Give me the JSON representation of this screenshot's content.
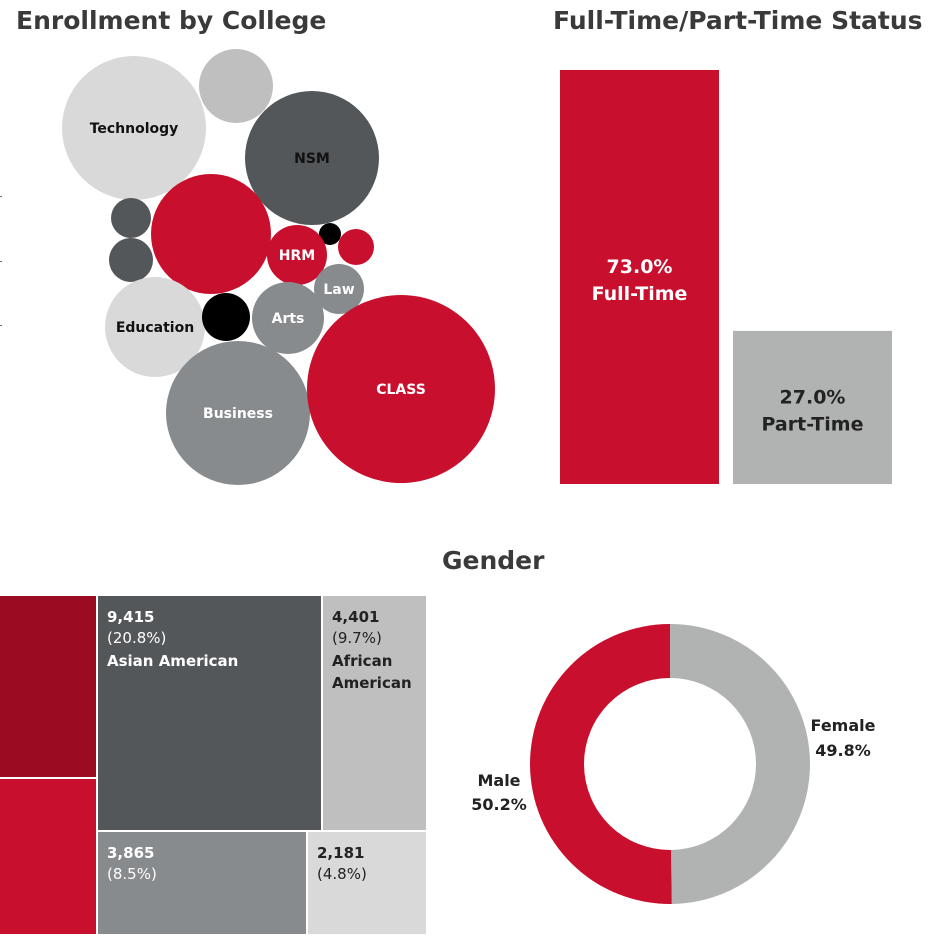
{
  "titles": {
    "enrollment": "Enrollment by College",
    "status": "Full-Time/Part-Time Status",
    "gender": "Gender"
  },
  "colors": {
    "red": "#c8102e",
    "dark_red": "#9b0c22",
    "charcoal": "#54575a",
    "mid_gray": "#888b8d",
    "light_gray": "#b1b3b3",
    "pale_gray": "#d9d9d9",
    "silver": "#bfbfbf",
    "black": "#000000"
  },
  "chart_data": [
    {
      "type": "bubble",
      "title": "Enrollment by College",
      "bubbles": [
        {
          "label": "Technology",
          "color": "pale_gray",
          "text_color": "#111111"
        },
        {
          "label": "",
          "color": "silver"
        },
        {
          "label": "NSM",
          "color": "charcoal",
          "text_color": "#111111"
        },
        {
          "label": "",
          "color": "charcoal"
        },
        {
          "label": "",
          "color": "red"
        },
        {
          "label": "",
          "color": "black"
        },
        {
          "label": "HRM",
          "color": "red",
          "text_color": "#ffffff"
        },
        {
          "label": "",
          "color": "red"
        },
        {
          "label": "",
          "color": "charcoal"
        },
        {
          "label": "Law",
          "color": "mid_gray",
          "text_color": "#ffffff"
        },
        {
          "label": "Education",
          "color": "pale_gray",
          "text_color": "#111111"
        },
        {
          "label": "",
          "color": "black"
        },
        {
          "label": "Arts",
          "color": "mid_gray",
          "text_color": "#ffffff"
        },
        {
          "label": "Business",
          "color": "mid_gray",
          "text_color": "#ffffff"
        },
        {
          "label": "CLASS",
          "color": "red",
          "text_color": "#ffffff"
        }
      ]
    },
    {
      "type": "bar",
      "title": "Full-Time/Part-Time Status",
      "categories": [
        "Full-Time",
        "Part-Time"
      ],
      "values": [
        73.0,
        27.0
      ],
      "value_labels": [
        "73.0%",
        "27.0%"
      ],
      "colors": [
        "red",
        "light_gray"
      ],
      "text_colors": [
        "#ffffff",
        "#222222"
      ],
      "ylim": [
        0,
        73.0
      ]
    },
    {
      "type": "treemap",
      "tiles": [
        {
          "value": "",
          "pct": "",
          "label": "",
          "color": "dark_red"
        },
        {
          "value": "",
          "pct": "",
          "label": "",
          "color": "red"
        },
        {
          "value": "9,415",
          "pct": "(20.8%)",
          "label": "Asian American",
          "color": "charcoal",
          "text_color": "#ffffff"
        },
        {
          "value": "4,401",
          "pct": "(9.7%)",
          "label": "African\nAmerican",
          "color": "silver",
          "text_color": "#222222"
        },
        {
          "value": "3,865",
          "pct": "(8.5%)",
          "label": "",
          "color": "mid_gray",
          "text_color": "#ffffff"
        },
        {
          "value": "2,181",
          "pct": "(4.8%)",
          "label": "",
          "color": "pale_gray",
          "text_color": "#222222"
        }
      ]
    },
    {
      "type": "pie",
      "title": "Gender",
      "donut": true,
      "slices": [
        {
          "name": "Female",
          "value": 49.8,
          "label": "49.8%",
          "color": "light_gray"
        },
        {
          "name": "Male",
          "value": 50.2,
          "label": "50.2%",
          "color": "red"
        }
      ]
    }
  ]
}
